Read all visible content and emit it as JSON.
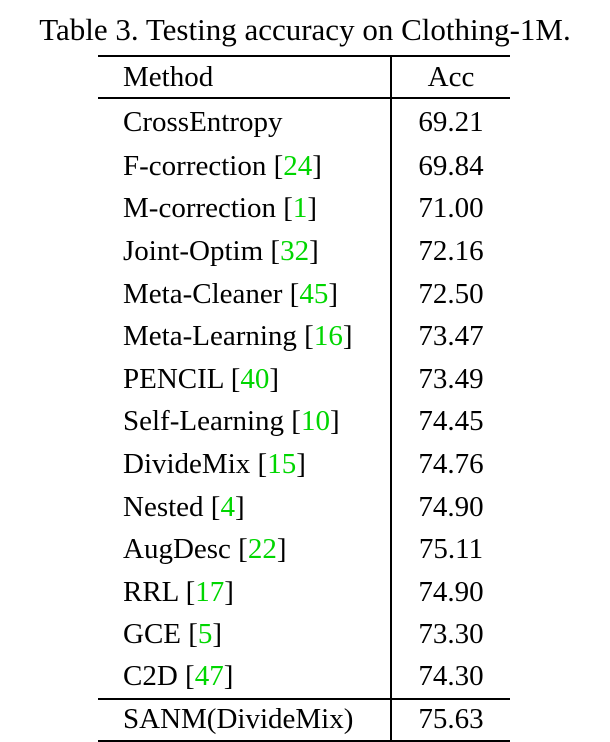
{
  "caption": "Table 3. Testing accuracy on Clothing-1M.",
  "headers": {
    "method": "Method",
    "acc": "Acc"
  },
  "rows": [
    {
      "method": "CrossEntropy",
      "ref": "",
      "acc": "69.21"
    },
    {
      "method": "F-correction",
      "ref": "24",
      "acc": "69.84"
    },
    {
      "method": "M-correction",
      "ref": "1",
      "acc": "71.00"
    },
    {
      "method": "Joint-Optim",
      "ref": "32",
      "acc": "72.16"
    },
    {
      "method": "Meta-Cleaner",
      "ref": "45",
      "acc": "72.50"
    },
    {
      "method": "Meta-Learning",
      "ref": "16",
      "acc": "73.47"
    },
    {
      "method": "PENCIL",
      "ref": "40",
      "acc": "73.49"
    },
    {
      "method": "Self-Learning",
      "ref": "10",
      "acc": "74.45"
    },
    {
      "method": "DivideMix",
      "ref": "15",
      "acc": "74.76"
    },
    {
      "method": "Nested",
      "ref": "4",
      "acc": "74.90"
    },
    {
      "method": "AugDesc",
      "ref": "22",
      "acc": "75.11"
    },
    {
      "method": "RRL",
      "ref": "17",
      "acc": "74.90"
    },
    {
      "method": "GCE",
      "ref": "5",
      "acc": "73.30"
    },
    {
      "method": "C2D",
      "ref": "47",
      "acc": "74.30"
    }
  ],
  "final_row": {
    "method": "SANM(DivideMix)",
    "acc": "75.63"
  },
  "colors": {
    "reference_link": "#00d600",
    "text": "#000000",
    "background": "#ffffff"
  }
}
